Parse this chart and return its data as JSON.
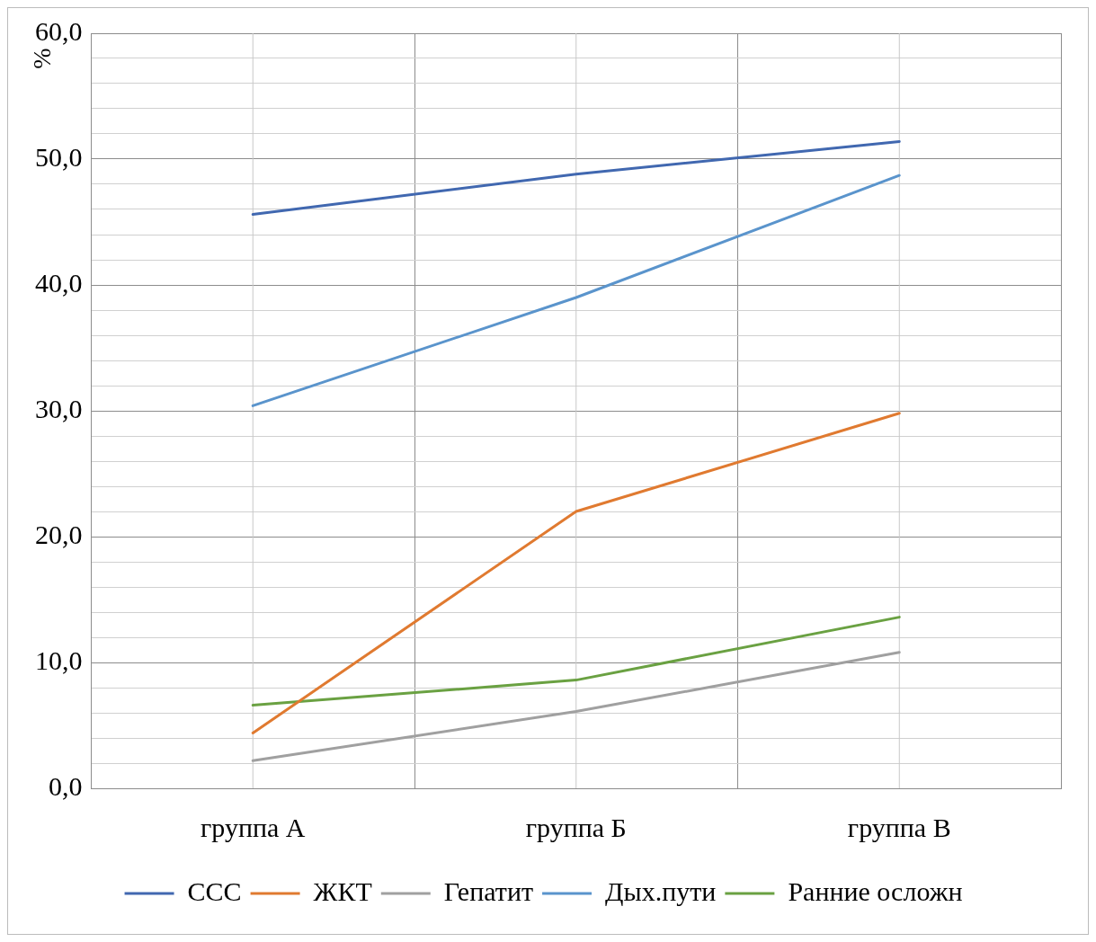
{
  "chart_data": {
    "type": "line",
    "ylabel": "%",
    "categories": [
      "группа А",
      "группа Б",
      "группа В"
    ],
    "series": [
      {
        "name": "ССС",
        "color": "#4168b0",
        "values": [
          45.6,
          48.8,
          51.4
        ]
      },
      {
        "name": "ЖКТ",
        "color": "#e07a30",
        "values": [
          4.4,
          22.0,
          29.8
        ]
      },
      {
        "name": "Гепатит",
        "color": "#a0a0a0",
        "values": [
          2.2,
          6.1,
          10.8
        ]
      },
      {
        "name": "Дых.пути",
        "color": "#5a94cc",
        "values": [
          30.4,
          39.0,
          48.7
        ]
      },
      {
        "name": "Ранние осложн",
        "color": "#6aa142",
        "values": [
          6.6,
          8.6,
          13.6
        ]
      }
    ],
    "ylim": [
      0,
      60
    ],
    "yticks": [
      {
        "value": 0,
        "label": "0,0"
      },
      {
        "value": 2,
        "label": null
      },
      {
        "value": 4,
        "label": null
      },
      {
        "value": 6,
        "label": null
      },
      {
        "value": 8,
        "label": null
      },
      {
        "value": 10,
        "label": "10,0"
      },
      {
        "value": 12,
        "label": null
      },
      {
        "value": 14,
        "label": null
      },
      {
        "value": 16,
        "label": null
      },
      {
        "value": 18,
        "label": null
      },
      {
        "value": 20,
        "label": "20,0"
      },
      {
        "value": 22,
        "label": null
      },
      {
        "value": 24,
        "label": null
      },
      {
        "value": 26,
        "label": null
      },
      {
        "value": 28,
        "label": null
      },
      {
        "value": 30,
        "label": "30,0"
      },
      {
        "value": 32,
        "label": null
      },
      {
        "value": 34,
        "label": null
      },
      {
        "value": 36,
        "label": null
      },
      {
        "value": 38,
        "label": null
      },
      {
        "value": 40,
        "label": "40,0"
      },
      {
        "value": 42,
        "label": null
      },
      {
        "value": 44,
        "label": null
      },
      {
        "value": 46,
        "label": null
      },
      {
        "value": 48,
        "label": null
      },
      {
        "value": 50,
        "label": "50,0"
      },
      {
        "value": 52,
        "label": null
      },
      {
        "value": 54,
        "label": null
      },
      {
        "value": 56,
        "label": null
      },
      {
        "value": 58,
        "label": null
      },
      {
        "value": 60,
        "label": "60,0"
      }
    ],
    "grid": true,
    "legend": "bottom",
    "marker": "none",
    "line_style": "solid"
  }
}
